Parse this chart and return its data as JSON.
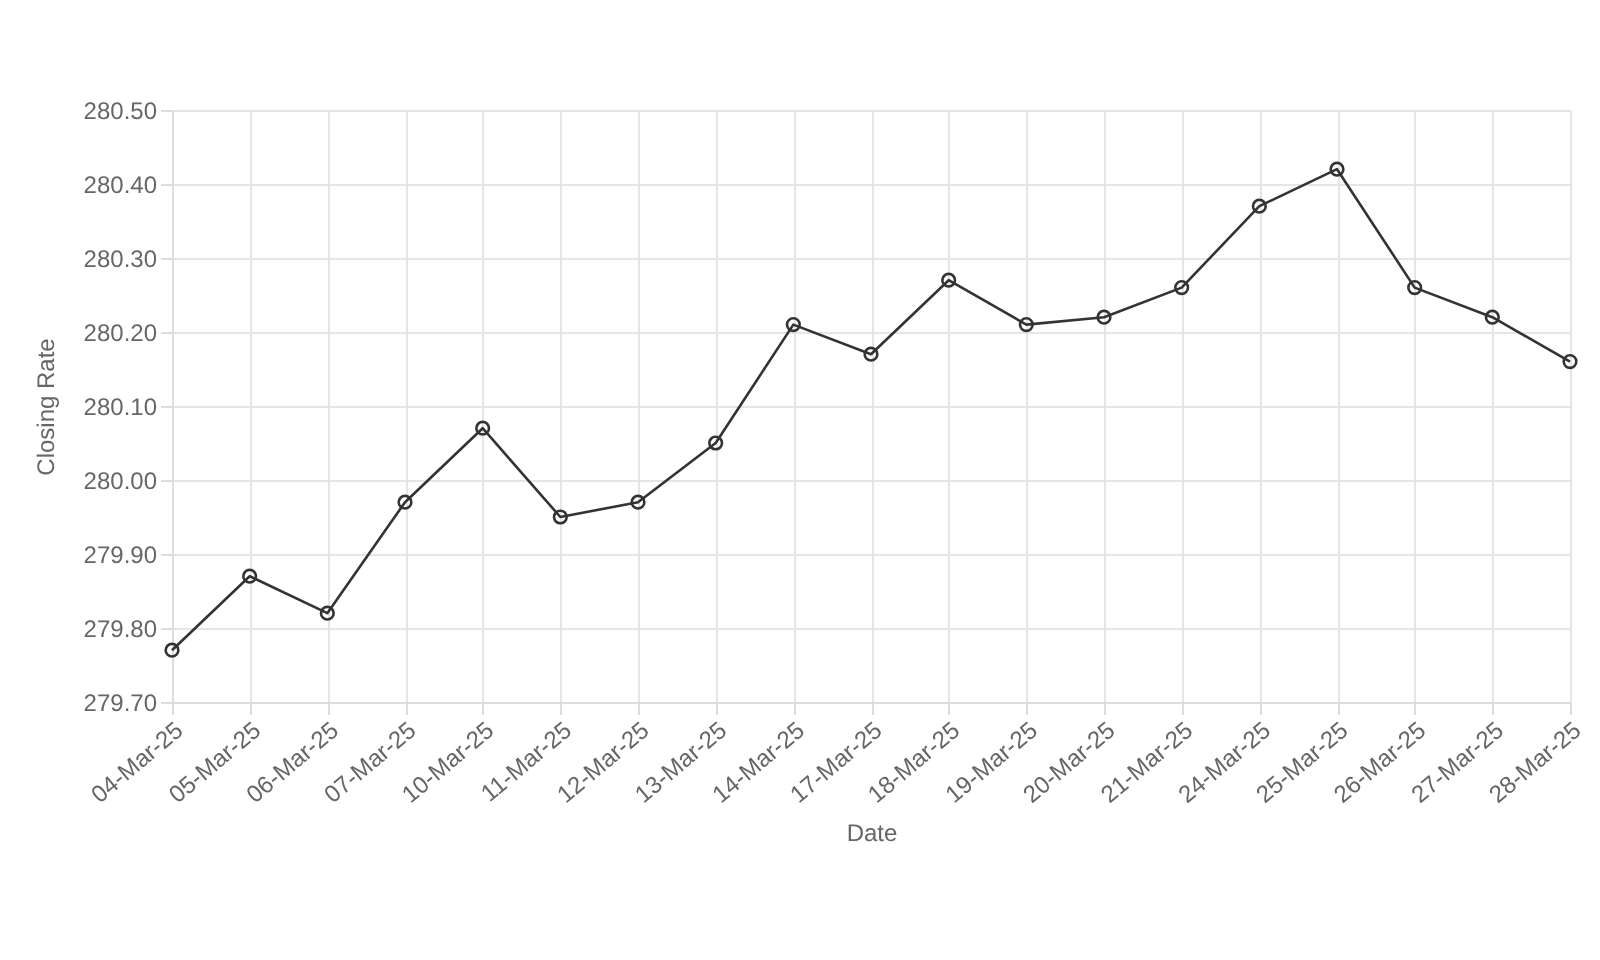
{
  "chart_data": {
    "type": "line",
    "xlabel": "Date",
    "ylabel": "Closing Rate",
    "categories": [
      "04-Mar-25",
      "05-Mar-25",
      "06-Mar-25",
      "07-Mar-25",
      "10-Mar-25",
      "11-Mar-25",
      "12-Mar-25",
      "13-Mar-25",
      "14-Mar-25",
      "17-Mar-25",
      "18-Mar-25",
      "19-Mar-25",
      "20-Mar-25",
      "21-Mar-25",
      "24-Mar-25",
      "25-Mar-25",
      "26-Mar-25",
      "27-Mar-25",
      "28-Mar-25"
    ],
    "series": [
      {
        "color": "#333333",
        "values": [
          279.77,
          279.87,
          279.82,
          279.97,
          280.07,
          279.95,
          279.97,
          280.05,
          280.21,
          280.17,
          280.27,
          280.21,
          280.22,
          280.26,
          280.37,
          280.42,
          280.26,
          280.22,
          280.16
        ]
      }
    ],
    "ylim": [
      279.7,
      280.5
    ],
    "yticks": [
      {
        "value": 279.7,
        "label": "279.70"
      },
      {
        "value": 279.8,
        "label": "279.80"
      },
      {
        "value": 279.9,
        "label": "279.90"
      },
      {
        "value": 280.0,
        "label": "280.00"
      },
      {
        "value": 280.1,
        "label": "280.10"
      },
      {
        "value": 280.2,
        "label": "280.20"
      },
      {
        "value": 280.3,
        "label": "280.30"
      },
      {
        "value": 280.4,
        "label": "280.40"
      },
      {
        "value": 280.5,
        "label": "280.50"
      }
    ],
    "grid": true,
    "marker": "circle",
    "line_style": "solid"
  }
}
